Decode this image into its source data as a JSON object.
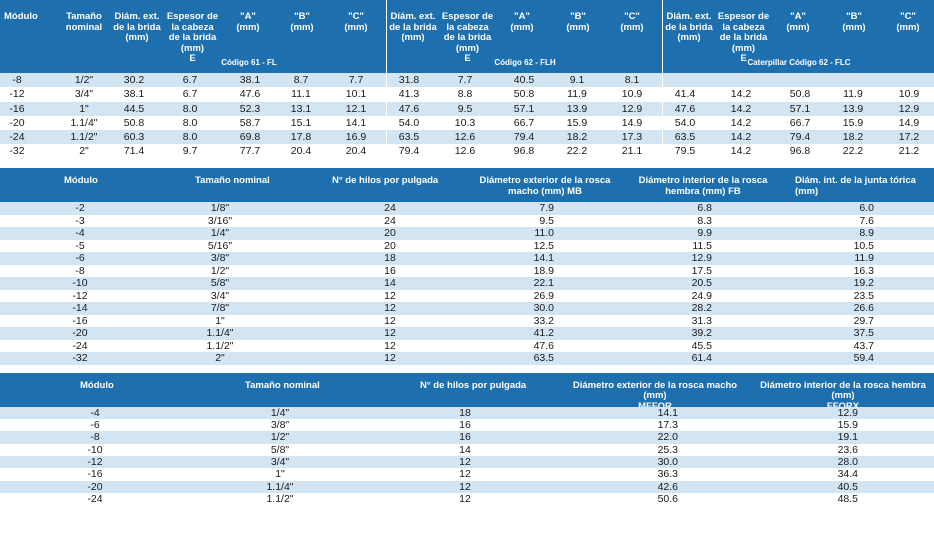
{
  "table1": {
    "headers": {
      "modulo": "Módulo",
      "tamano": "Tamaño nominal",
      "diam": "Diám. ext. de la brida (mm)",
      "espesor": "Espesor de la cabeza de la brida (mm)",
      "e": "E",
      "a": "\"A\" (mm)",
      "b": "\"B\" (mm)",
      "c": "\"C\" (mm)"
    },
    "group1": "Código 61 - FL",
    "group2": "Código 62 - FLH",
    "group3": "Caterpillar Código 62 - FLC",
    "rows": [
      [
        "-8",
        "1/2\"",
        "30.2",
        "6.7",
        "38.1",
        "8.7",
        "7.7",
        "31.8",
        "7.7",
        "40.5",
        "9.1",
        "8.1",
        "",
        "",
        "",
        "",
        ""
      ],
      [
        "-12",
        "3/4\"",
        "38.1",
        "6.7",
        "47.6",
        "11.1",
        "10.1",
        "41.3",
        "8.8",
        "50.8",
        "11.9",
        "10.9",
        "41.4",
        "14.2",
        "50.8",
        "11.9",
        "10.9"
      ],
      [
        "-16",
        "1\"",
        "44.5",
        "8.0",
        "52.3",
        "13.1",
        "12.1",
        "47.6",
        "9.5",
        "57.1",
        "13.9",
        "12.9",
        "47.6",
        "14.2",
        "57.1",
        "13.9",
        "12.9"
      ],
      [
        "-20",
        "1.1/4\"",
        "50.8",
        "8.0",
        "58.7",
        "15.1",
        "14.1",
        "54.0",
        "10.3",
        "66.7",
        "15.9",
        "14.9",
        "54.0",
        "14.2",
        "66.7",
        "15.9",
        "14.9"
      ],
      [
        "-24",
        "1.1/2\"",
        "60.3",
        "8.0",
        "69.8",
        "17.8",
        "16.9",
        "63.5",
        "12.6",
        "79.4",
        "18.2",
        "17.3",
        "63.5",
        "14.2",
        "79.4",
        "18.2",
        "17.2"
      ],
      [
        "-32",
        "2\"",
        "71.4",
        "9.7",
        "77.7",
        "20.4",
        "20.4",
        "79.4",
        "12.6",
        "96.8",
        "22.2",
        "21.1",
        "79.5",
        "14.2",
        "96.8",
        "22.2",
        "21.2"
      ]
    ]
  },
  "table2": {
    "headers": {
      "modulo": "Módulo",
      "tamano": "Tamaño nominal",
      "hilos": "N° de hilos por pulgada",
      "macho": "Diámetro exterior de la rosca macho (mm) MB",
      "hembra": "Diámetro interior de la rosca hembra (mm) FB",
      "junta": "Diám. int. de la junta tórica (mm)"
    },
    "rows": [
      [
        "-2",
        "1/8\"",
        "24",
        "7.9",
        "6.8",
        "6.0"
      ],
      [
        "-3",
        "3/16\"",
        "24",
        "9.5",
        "8.3",
        "7.6"
      ],
      [
        "-4",
        "1/4\"",
        "20",
        "11.0",
        "9.9",
        "8.9"
      ],
      [
        "-5",
        "5/16\"",
        "20",
        "12.5",
        "11.5",
        "10.5"
      ],
      [
        "-6",
        "3/8\"",
        "18",
        "14.1",
        "12.9",
        "11.9"
      ],
      [
        "-8",
        "1/2\"",
        "16",
        "18.9",
        "17.5",
        "16.3"
      ],
      [
        "-10",
        "5/8\"",
        "14",
        "22.1",
        "20.5",
        "19.2"
      ],
      [
        "-12",
        "3/4\"",
        "12",
        "26.9",
        "24.9",
        "23.5"
      ],
      [
        "-14",
        "7/8\"",
        "12",
        "30.0",
        "28.2",
        "26.6"
      ],
      [
        "-16",
        "1\"",
        "12",
        "33.2",
        "31.3",
        "29.7"
      ],
      [
        "-20",
        "1.1/4\"",
        "12",
        "41.2",
        "39.2",
        "37.5"
      ],
      [
        "-24",
        "1.1/2\"",
        "12",
        "47.6",
        "45.5",
        "43.7"
      ],
      [
        "-32",
        "2\"",
        "12",
        "63.5",
        "61.4",
        "59.4"
      ]
    ]
  },
  "table3": {
    "headers": {
      "modulo": "Módulo",
      "tamano": "Tamaño nominal",
      "hilos": "N° de hilos por pulgada",
      "macho": "Diámetro exterior de la rosca macho (mm)",
      "macho_sub": "MFFOR",
      "hembra": "Diámetro interior de la rosca hembra (mm)",
      "hembra_sub": "FFORX"
    },
    "rows": [
      [
        "-4",
        "1/4\"",
        "18",
        "14.1",
        "12.9"
      ],
      [
        "-6",
        "3/8\"",
        "16",
        "17.3",
        "15.9"
      ],
      [
        "-8",
        "1/2\"",
        "16",
        "22.0",
        "19.1"
      ],
      [
        "-10",
        "5/8\"",
        "14",
        "25.3",
        "23.6"
      ],
      [
        "-12",
        "3/4\"",
        "12",
        "30.0",
        "28.0"
      ],
      [
        "-16",
        "1\"",
        "12",
        "36.3",
        "34.4"
      ],
      [
        "-20",
        "1.1/4\"",
        "12",
        "42.6",
        "40.5"
      ],
      [
        "-24",
        "1.1/2\"",
        "12",
        "50.6",
        "48.5"
      ]
    ]
  }
}
